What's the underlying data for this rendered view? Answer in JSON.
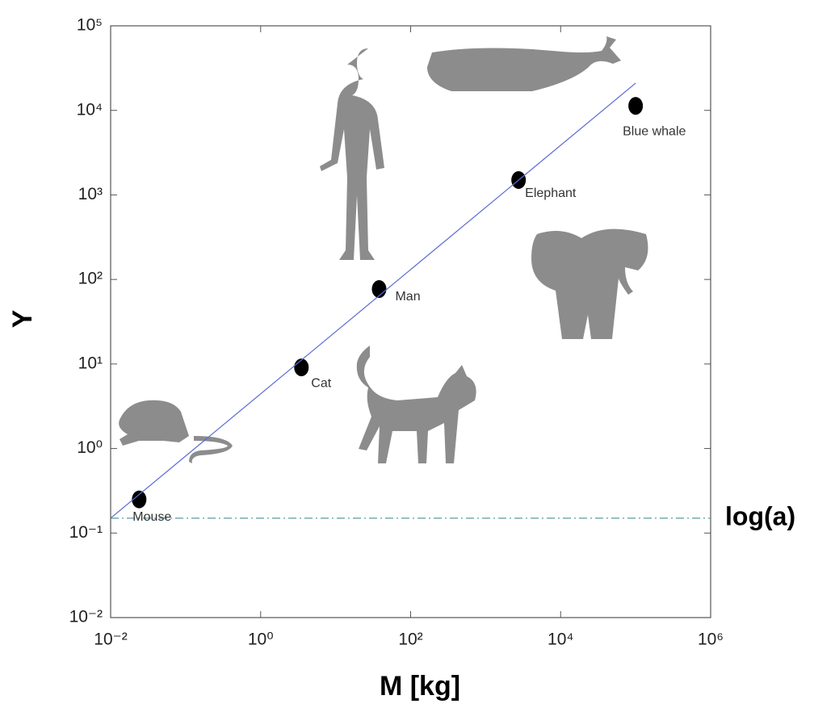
{
  "chart_data": {
    "type": "scatter",
    "x_label": "M [kg]",
    "y_label": "Y",
    "xscale": "log",
    "yscale": "log",
    "xlim": [
      0.01,
      1000000
    ],
    "ylim": [
      0.01,
      100000
    ],
    "xticks": [
      {
        "value": 0.01,
        "label": "10⁻²"
      },
      {
        "value": 1,
        "label": "10⁰"
      },
      {
        "value": 100,
        "label": "10²"
      },
      {
        "value": 10000,
        "label": "10⁴"
      },
      {
        "value": 1000000,
        "label": "10⁶"
      }
    ],
    "yticks": [
      {
        "value": 0.01,
        "label": "10⁻²"
      },
      {
        "value": 0.1,
        "label": "10⁻¹"
      },
      {
        "value": 1,
        "label": "10⁰"
      },
      {
        "value": 10,
        "label": "10¹"
      },
      {
        "value": 100,
        "label": "10²"
      },
      {
        "value": 1000,
        "label": "10³"
      },
      {
        "value": 10000,
        "label": "10⁴"
      },
      {
        "value": 100000,
        "label": "10⁵"
      }
    ],
    "grid": false,
    "series": [
      {
        "name": null,
        "color": "#000000",
        "x": [
          0.024,
          3.5,
          38,
          2750,
          100000
        ],
        "values": [
          0.25,
          9.1,
          77,
          1500,
          11300
        ],
        "point_labels": [
          "Mouse",
          "Cat",
          "Man",
          "Elephant",
          "Blue whale"
        ]
      },
      {
        "name": null,
        "type": "line",
        "color": "#5b6bd6",
        "x": [
          0.01,
          100000
        ],
        "values": [
          0.15,
          21000
        ]
      }
    ],
    "hline": {
      "value": 0.15,
      "label": "log(a)",
      "color": "#5a9aa0"
    }
  }
}
